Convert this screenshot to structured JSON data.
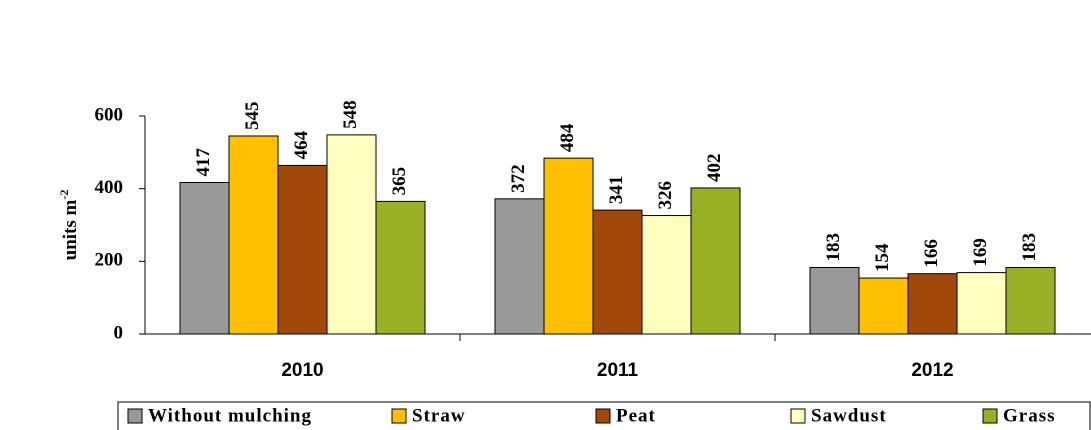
{
  "chart_data": {
    "type": "bar",
    "y_label": "units  m",
    "y_label_sup": "-2",
    "categories": [
      "2010",
      "2011",
      "2012"
    ],
    "series": [
      {
        "name": "Without mulching",
        "color": "#999999",
        "values": [
          417,
          372,
          183
        ]
      },
      {
        "name": "Straw",
        "color": "#ffc000",
        "values": [
          545,
          484,
          154
        ]
      },
      {
        "name": "Peat",
        "color": "#a0490a",
        "values": [
          464,
          341,
          166
        ]
      },
      {
        "name": "Sawdust",
        "color": "#ffffc0",
        "values": [
          548,
          326,
          169
        ]
      },
      {
        "name": "Grass",
        "color": "#99b025",
        "values": [
          365,
          402,
          183
        ]
      }
    ],
    "ylim": [
      0,
      600
    ],
    "yticks": [
      0,
      200,
      400,
      600
    ],
    "legend": "bottom"
  }
}
